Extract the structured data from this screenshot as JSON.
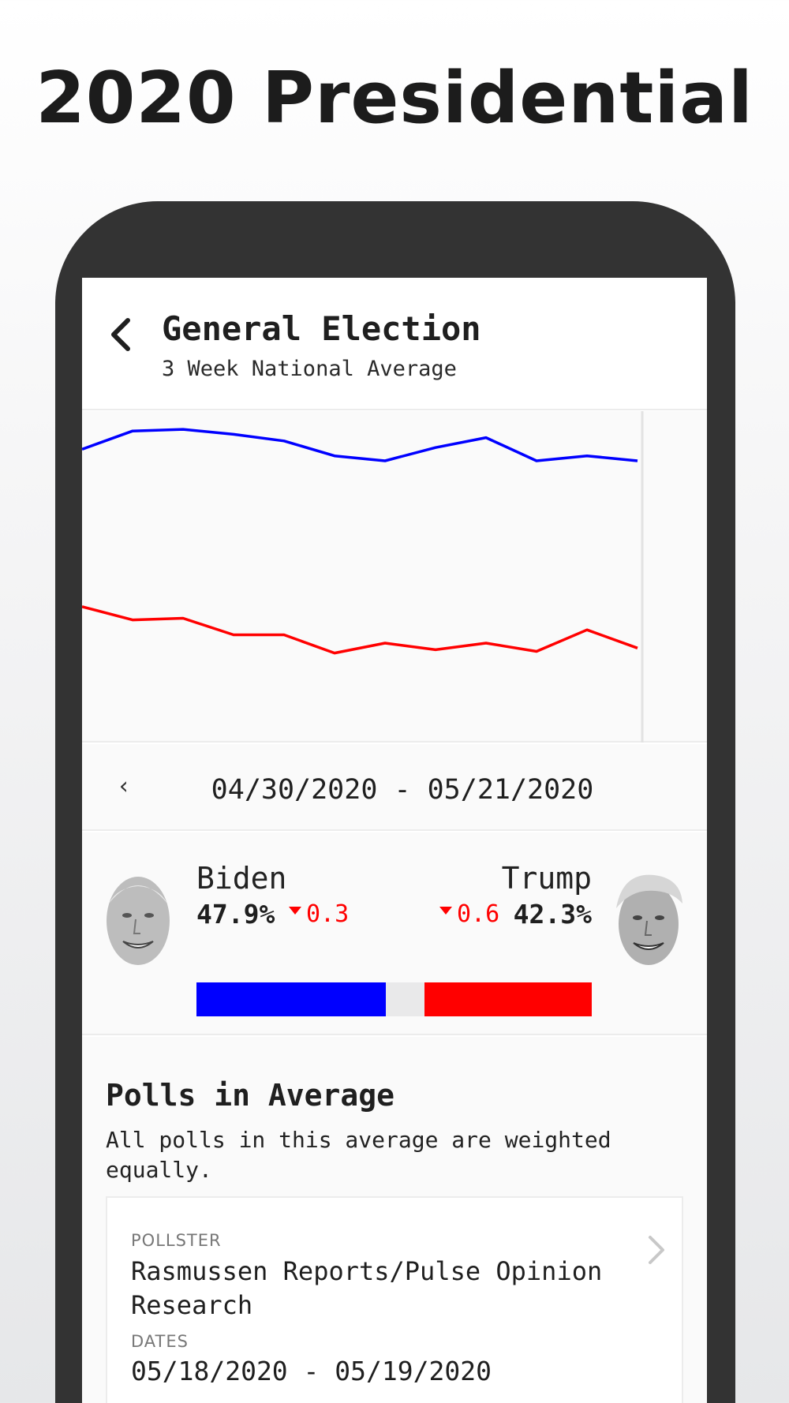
{
  "headline": "2020 Presidential",
  "header": {
    "title": "General Election",
    "subtitle": "3 Week National Average"
  },
  "chart_data": {
    "type": "line",
    "x": [
      1,
      2,
      3,
      4,
      5,
      6,
      7,
      8,
      9,
      10,
      11,
      12
    ],
    "series": [
      {
        "color": "#0000ff",
        "values": [
          50.7,
          51.8,
          51.9,
          51.6,
          51.2,
          50.3,
          50.0,
          50.8,
          51.4,
          50.0,
          50.3,
          50.0
        ]
      },
      {
        "color": "#ff0000",
        "values": [
          41.2,
          40.4,
          40.5,
          39.5,
          39.5,
          38.4,
          39.0,
          38.6,
          39.0,
          38.5,
          39.8,
          38.7
        ]
      }
    ],
    "ylim": [
      33,
      53
    ],
    "grid": false,
    "legend": "none"
  },
  "range": {
    "prev_label": "‹",
    "text": "04/30/2020 - 05/21/2020"
  },
  "matchup": {
    "left": {
      "name": "Biden",
      "pct": "47.9%",
      "change": "0.3",
      "change_dir": "down",
      "share": 47.9,
      "color": "#0000ff"
    },
    "right": {
      "name": "Trump",
      "pct": "42.3%",
      "change": "0.6",
      "change_dir": "down",
      "share": 42.3,
      "color": "#ff0000"
    }
  },
  "polls": {
    "title": "Polls in Average",
    "description": "All polls in this average are weighted equally.",
    "items": [
      {
        "pollster_label": "POLLSTER",
        "pollster": "Rasmussen Reports/Pulse Opinion Research",
        "dates_label": "DATES",
        "dates": "05/18/2020 - 05/19/2020"
      }
    ]
  },
  "icons": {
    "back": "chevron-left-icon",
    "card": "chevron-right-icon"
  }
}
